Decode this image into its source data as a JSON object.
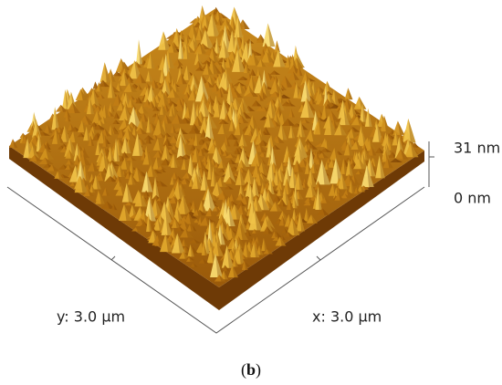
{
  "labels": {
    "z_top": "31 nm",
    "z_bottom": "0 nm",
    "y_axis": "y: 3.0 µm",
    "x_axis": "x: 3.0 µm"
  },
  "caption": {
    "open": "(",
    "letter": "b",
    "close": ")"
  }
}
